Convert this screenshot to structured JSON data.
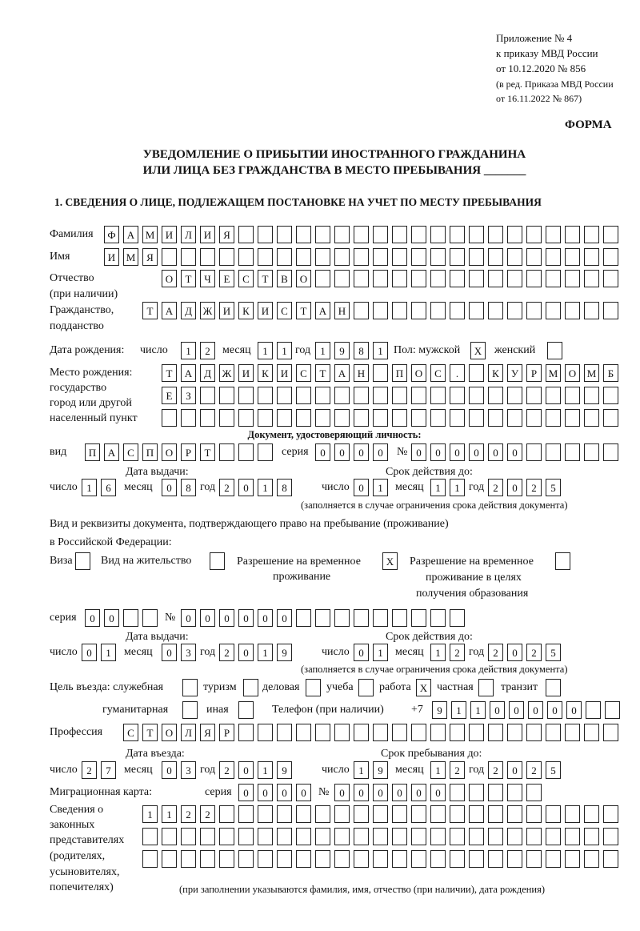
{
  "header": {
    "line1": "Приложение № 4",
    "line2": "к приказу МВД России",
    "line3": "от 10.12.2020 № 856",
    "line4": "(в ред. Приказа МВД России",
    "line5": "от 16.11.2022 № 867)",
    "form_label": "ФОРМА",
    "title_line1": "УВЕДОМЛЕНИЕ О ПРИБЫТИИ ИНОСТРАННОГО ГРАЖДАНИНА",
    "title_line2": "ИЛИ ЛИЦА БЕЗ ГРАЖДАНСТВА В МЕСТО ПРЕБЫВАНИЯ _______",
    "section1": "1. СВЕДЕНИЯ О ЛИЦЕ, ПОДЛЕЖАЩЕМ ПОСТАНОВКЕ НА УЧЕТ ПО МЕСТУ ПРЕБЫВАНИЯ"
  },
  "labels": {
    "surname": "Фамилия",
    "name": "Имя",
    "patronymic": "Отчество",
    "patronymic_note": "(при наличии)",
    "citizenship": "Гражданство,",
    "citizenship2": "подданство",
    "birth_date": "Дата рождения:",
    "day": "число",
    "month": "месяц",
    "year": "год",
    "sex": "Пол: мужской",
    "female": "женский",
    "birthplace1": "Место рождения:",
    "birthplace2": "государство",
    "birthplace3": "город или другой",
    "birthplace4": "населенный пункт",
    "id_doc": "Документ, удостоверяющий личность:",
    "kind": "вид",
    "series": "серия",
    "number": "№",
    "issue_date": "Дата выдачи:",
    "valid_until": "Срок действия до:",
    "valid_note": "(заполняется в случае ограничения срока действия документа)",
    "residence_doc1": "Вид и реквизиты документа, подтверждающего право на пребывание (проживание)",
    "residence_doc2": "в Российской Федерации:",
    "visa": "Виза",
    "residence_permit": "Вид на жительство",
    "temp_residence1": "Разрешение на временное",
    "temp_residence2": "проживание",
    "temp_edu1": "Разрешение на временное",
    "temp_edu2": "проживание в целях",
    "temp_edu3": "получения образования",
    "purpose": "Цель въезда: служебная",
    "tourism": "туризм",
    "business": "деловая",
    "study": "учеба",
    "work": "работа",
    "private": "частная",
    "transit": "транзит",
    "humanitarian": "гуманитарная",
    "other": "иная",
    "phone": "Телефон (при наличии)",
    "phone_prefix": "+7",
    "profession": "Профессия",
    "entry_date": "Дата въезда:",
    "stay_until": "Срок пребывания до:",
    "migration_card": "Миграционная карта:",
    "reps1": "Сведения о",
    "reps2": "законных",
    "reps3": "представителях",
    "reps4": "(родителях,",
    "reps5": "усыновителях,",
    "reps6": "попечителях)",
    "reps_note": "(при заполнении указываются фамилия, имя, отчество (при наличии), дата рождения)"
  },
  "fields": {
    "surname": "ФАМИЛИЯ",
    "name": "ИМЯ",
    "patronymic": "ОТЧЕСТВО",
    "citizenship": "ТАДЖИКИСТАН",
    "birth_day": "12",
    "birth_month": "11",
    "birth_year": "1981",
    "sex_male": "X",
    "sex_female": "",
    "birthplace_line1": "ТАДЖИКИСТАН ПОС. КУРМОМБ",
    "birthplace_line2": "ЕЗ",
    "birthplace_line3": "",
    "id_kind": "ПАСПОРТ",
    "id_series": "0000",
    "id_number": "000000",
    "id_issue_day": "16",
    "id_issue_month": "08",
    "id_issue_year": "2018",
    "id_valid_day": "01",
    "id_valid_month": "11",
    "id_valid_year": "2025",
    "visa": "",
    "residence_permit": "",
    "temp_residence": "X",
    "temp_edu": "",
    "rd_series": "00",
    "rd_number": "000000",
    "rd_issue_day": "01",
    "rd_issue_month": "03",
    "rd_issue_year": "2019",
    "rd_valid_day": "01",
    "rd_valid_month": "12",
    "rd_valid_year": "2025",
    "purpose_official": "",
    "purpose_tourism": "",
    "purpose_business": "",
    "purpose_study": "",
    "purpose_work": "X",
    "purpose_private": "",
    "purpose_transit": "",
    "purpose_humanitarian": "",
    "purpose_other": "",
    "phone": "91100000",
    "profession": "СТОЛЯР",
    "entry_day": "27",
    "entry_month": "03",
    "entry_year": "2019",
    "stay_day": "19",
    "stay_month": "12",
    "stay_year": "2025",
    "mc_series": "0000",
    "mc_number": "000000",
    "reps_line1": "1122",
    "reps_line2": "",
    "reps_line3": ""
  }
}
